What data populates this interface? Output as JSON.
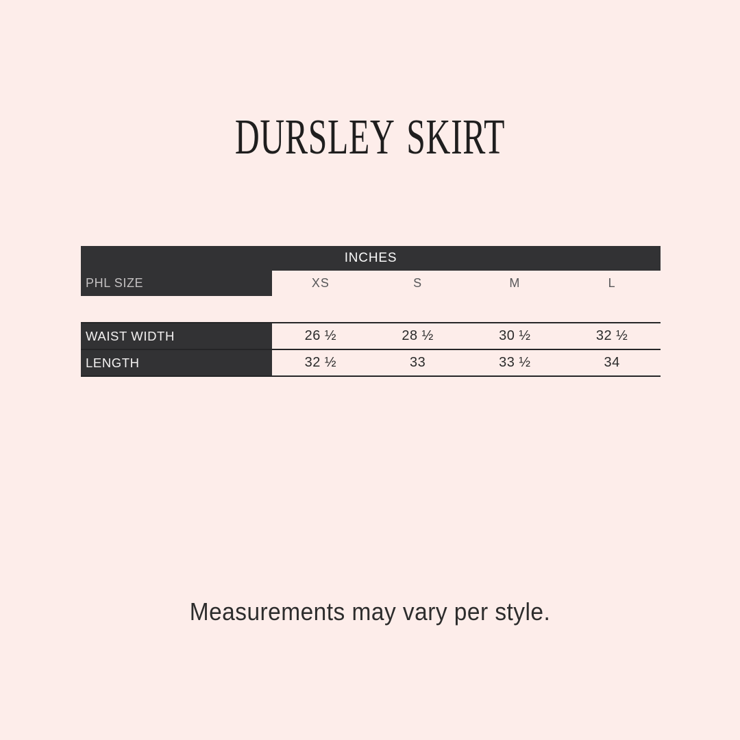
{
  "page": {
    "title": "DURSLEY SKIRT",
    "footnote": "Measurements may vary per style.",
    "background_color": "#fdedea"
  },
  "size_chart": {
    "unit_header": "INCHES",
    "size_row_label": "PHL SIZE",
    "sizes": [
      "XS",
      "S",
      "M",
      "L"
    ],
    "rows": [
      {
        "label": "WAIST WIDTH",
        "values": [
          "26 ½",
          "28 ½",
          "30 ½",
          "32 ½"
        ]
      },
      {
        "label": "LENGTH",
        "values": [
          "32 ½",
          "33",
          "33 ½",
          "34"
        ]
      }
    ],
    "colors": {
      "header_bg": "#323234",
      "header_text": "#fafafa",
      "row_label_text": "#f4f2f2",
      "size_row_label_text": "#c4c1c2",
      "sizes_text": "#58585a",
      "value_text": "#2b2b2b",
      "grid_line": "#252527",
      "page_background": "#fdedea"
    }
  },
  "chart_data": {
    "type": "table",
    "title": "DURSLEY SKIRT",
    "unit": "INCHES",
    "columns": [
      "PHL SIZE",
      "XS",
      "S",
      "M",
      "L"
    ],
    "rows": [
      [
        "WAIST WIDTH",
        "26 ½",
        "28 ½",
        "30 ½",
        "32 ½"
      ],
      [
        "LENGTH",
        "32 ½",
        "33",
        "33 ½",
        "34"
      ]
    ],
    "note": "Measurements may vary per style."
  }
}
